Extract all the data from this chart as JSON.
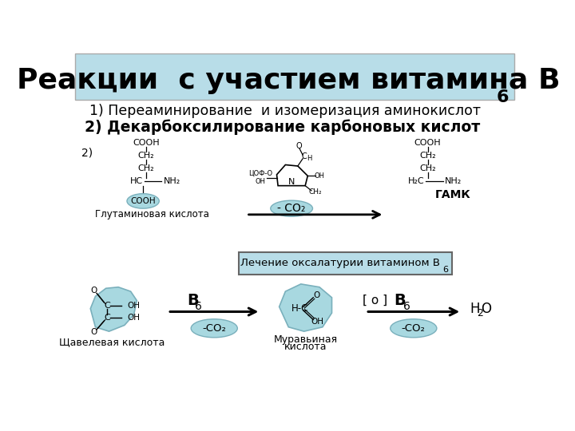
{
  "title": "Реакции  с участием витамина В",
  "title_sub": "6",
  "title_bg": "#b8dde8",
  "bg_color": "#ffffff",
  "line1": "1) Переаминирование  и изомеризация аминокислот",
  "line2": "2) Декарбоксилирование карбоновых кислот",
  "label_2": "2)",
  "glutamic_label": "Глутаминовая кислота",
  "gaba_label": "ГАМК",
  "treatment_text": "Лечение оксалатурии витамином В",
  "treatment_sub": "6",
  "treatment_bg": "#b8dde8",
  "oxalic_label": "Щавелевая кислота",
  "formic_label1": "Муравьиная",
  "formic_label2": "кислота",
  "o_bracket": "[ о ]",
  "teal_fill": "#a8d8e0",
  "teal_edge": "#7ab0bc"
}
